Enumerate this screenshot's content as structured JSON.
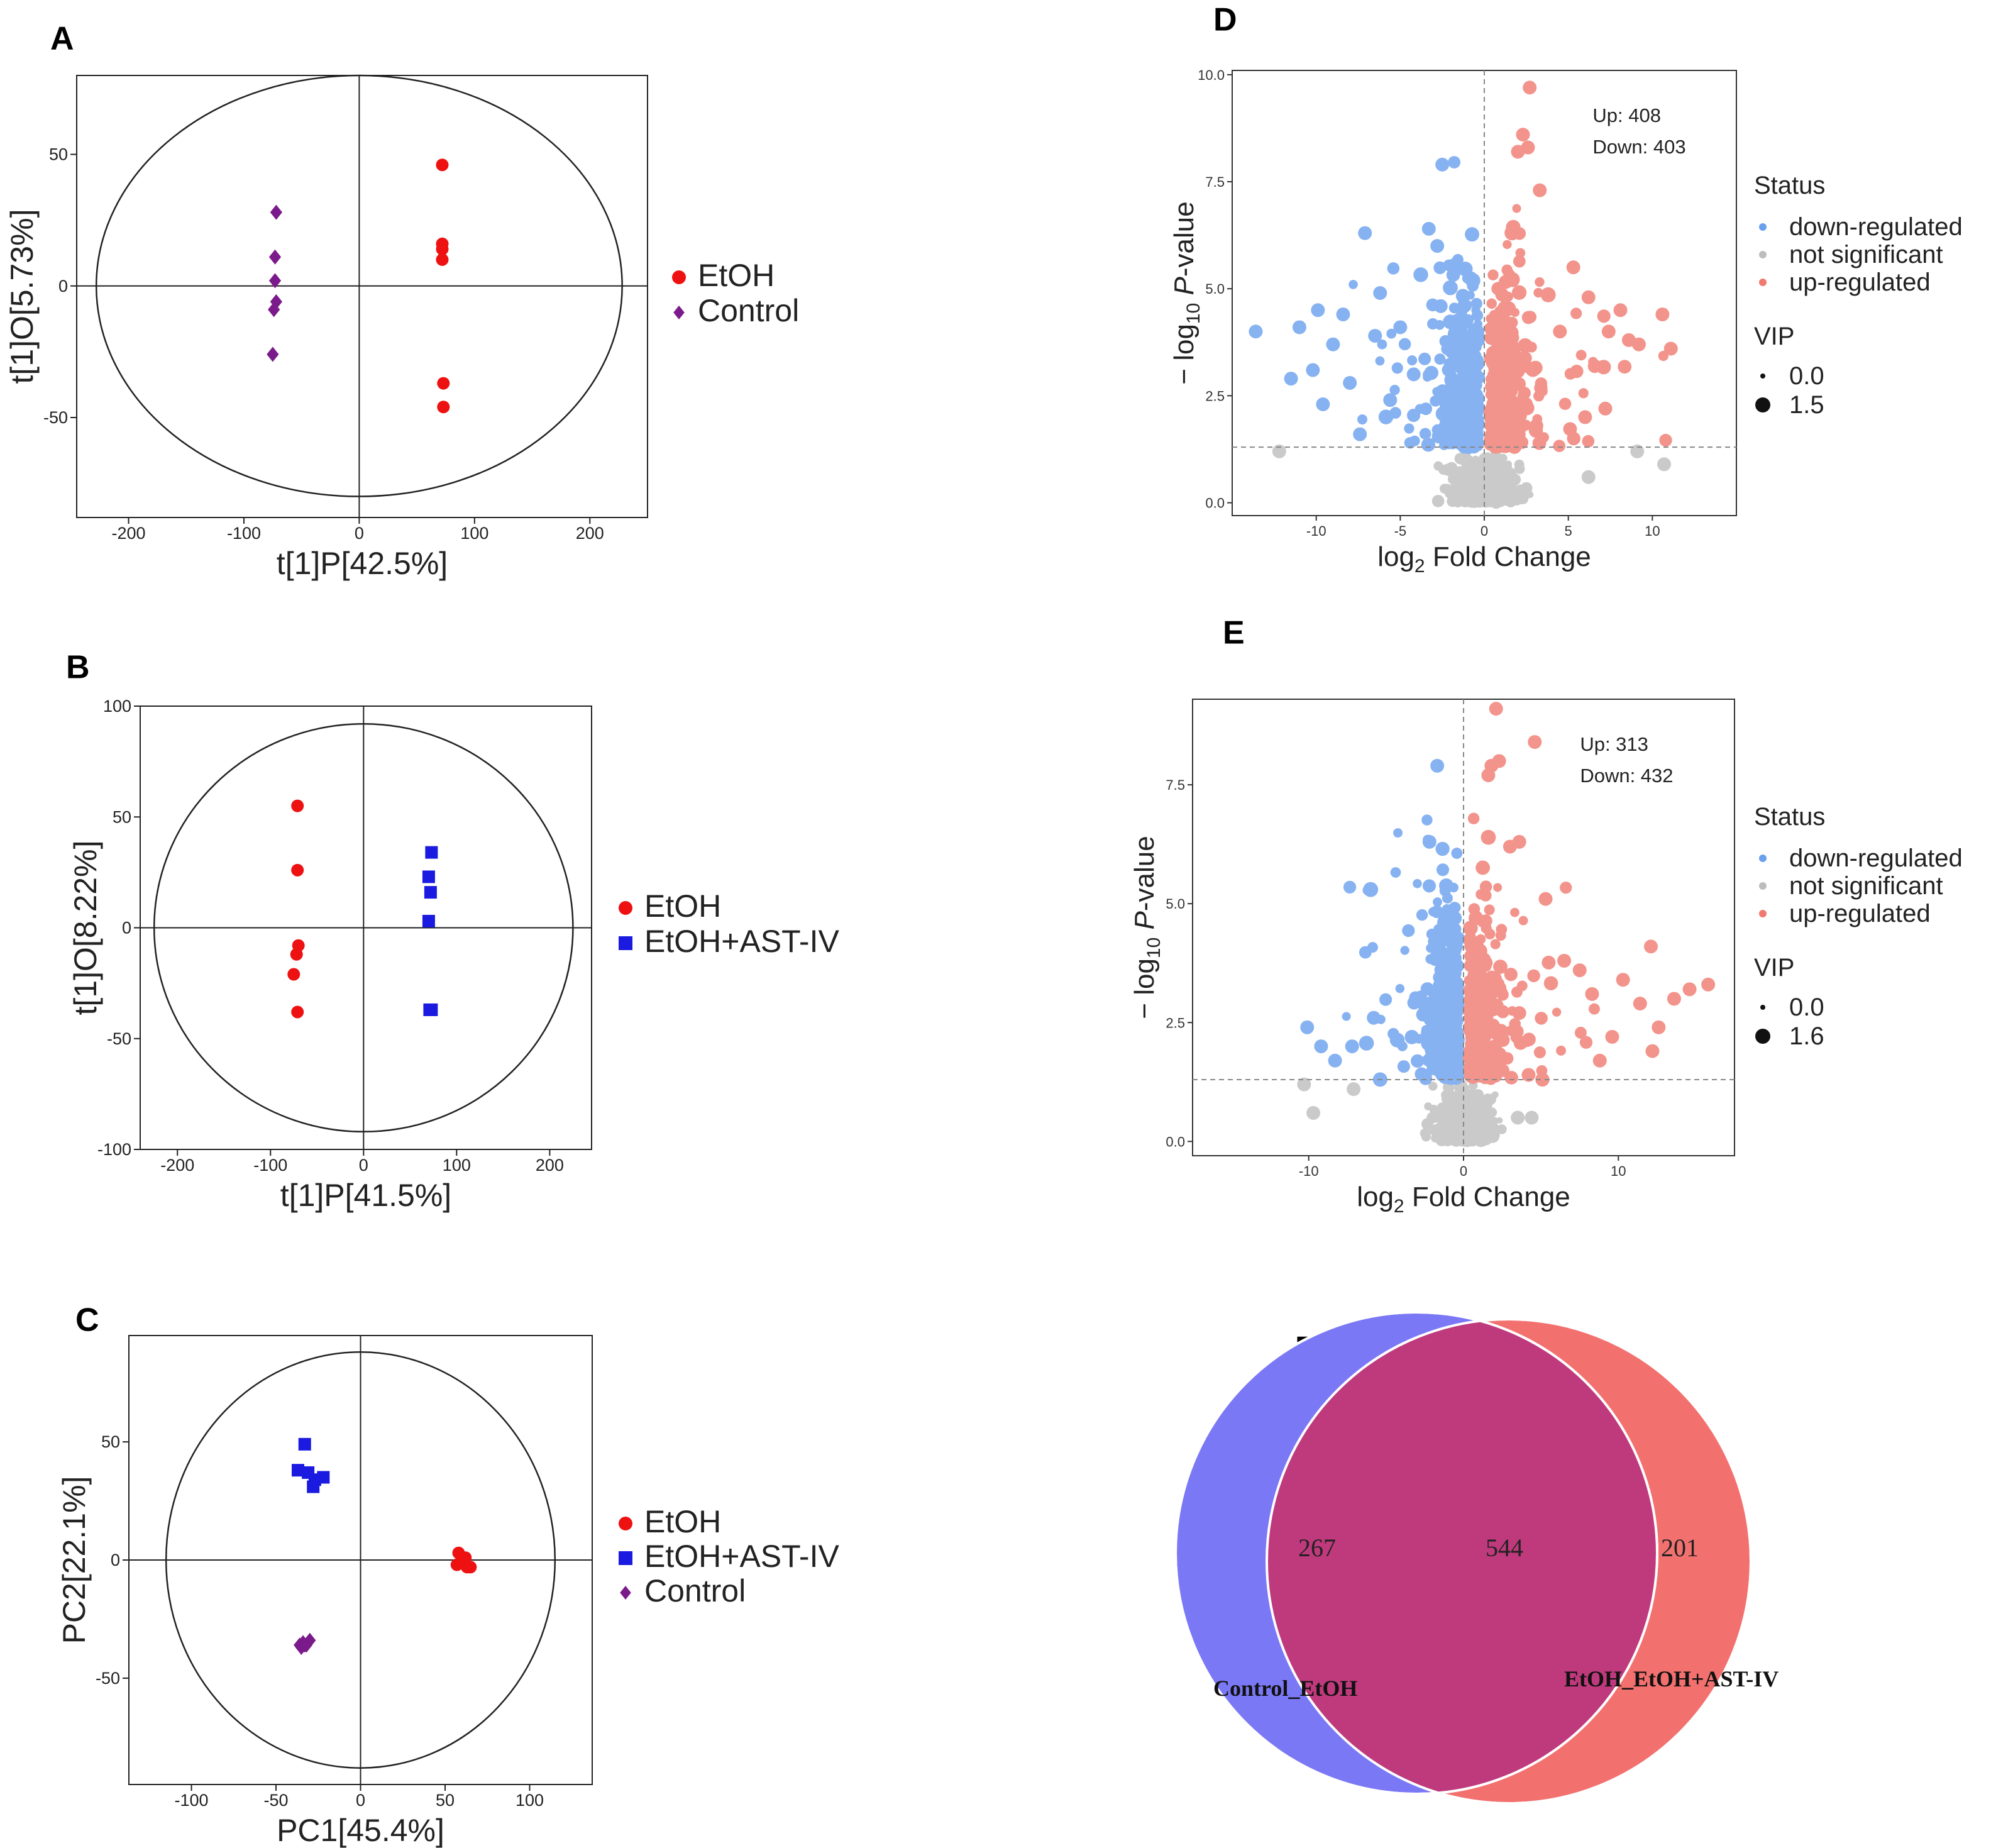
{
  "colors": {
    "etoh": "#ee1111",
    "control": "#7b1a8a",
    "ast": "#1a1ae0",
    "down": "#6aa0ee",
    "ns": "#bdbdbd",
    "up": "#f07a70",
    "venn_left": "#7b78f5",
    "venn_right": "#f2716f",
    "venn_overlap": "#bf3a7c"
  },
  "chart_data": [
    {
      "id": "A",
      "type": "scatter",
      "subtype": "opls-da score plot",
      "panel_label": "A",
      "xlabel": "t[1]P[42.5%]",
      "ylabel": "t[1]O[5.73%]",
      "xlim": [
        -245,
        250
      ],
      "ylim": [
        -88,
        80
      ],
      "xticks": [
        -200,
        -100,
        0,
        100,
        200
      ],
      "yticks": [
        -50,
        0,
        50
      ],
      "ellipse": {
        "rx": 228,
        "ry": 80
      },
      "legend": "right",
      "series": [
        {
          "name": "EtOH",
          "marker": "circle",
          "color": "#ee1111",
          "points": [
            [
              72,
              46
            ],
            [
              72,
              16
            ],
            [
              72,
              14
            ],
            [
              72,
              10
            ],
            [
              73,
              -37
            ],
            [
              73,
              -46
            ]
          ]
        },
        {
          "name": "Control",
          "marker": "diamond",
          "color": "#7b1a8a",
          "points": [
            [
              -72,
              28
            ],
            [
              -73,
              11
            ],
            [
              -73,
              2
            ],
            [
              -72,
              -6
            ],
            [
              -74,
              -9
            ],
            [
              -75,
              -26
            ]
          ]
        }
      ]
    },
    {
      "id": "B",
      "type": "scatter",
      "subtype": "opls-da score plot",
      "panel_label": "B",
      "xlabel": "t[1]P[41.5%]",
      "ylabel": "t[1]O[8.22%]",
      "xlim": [
        -240,
        245
      ],
      "ylim": [
        -100,
        100
      ],
      "xticks": [
        -200,
        -100,
        0,
        100,
        200
      ],
      "yticks": [
        -100,
        -50,
        0,
        50,
        100
      ],
      "ellipse": {
        "rx": 225,
        "ry": 92
      },
      "legend": "right",
      "series": [
        {
          "name": "EtOH",
          "marker": "circle",
          "color": "#ee1111",
          "points": [
            [
              -71,
              55
            ],
            [
              -71,
              26
            ],
            [
              -70,
              -8
            ],
            [
              -72,
              -12
            ],
            [
              -75,
              -21
            ],
            [
              -71,
              -38
            ]
          ]
        },
        {
          "name": "EtOH+AST-IV",
          "marker": "square",
          "color": "#1a1ae0",
          "points": [
            [
              73,
              34
            ],
            [
              70,
              23
            ],
            [
              72,
              16
            ],
            [
              70,
              3
            ],
            [
              73,
              -37
            ],
            [
              71,
              -37
            ]
          ]
        }
      ]
    },
    {
      "id": "C",
      "type": "scatter",
      "subtype": "pca score plot",
      "panel_label": "C",
      "xlabel": "PC1[45.4%]",
      "ylabel": "PC2[22.1%]",
      "xlim": [
        -137,
        137
      ],
      "ylim": [
        -95,
        95
      ],
      "xticks": [
        -100,
        -50,
        0,
        50,
        100
      ],
      "yticks": [
        -50,
        0,
        50
      ],
      "ellipse": {
        "rx": 115,
        "ry": 88
      },
      "legend": "right",
      "series": [
        {
          "name": "EtOH",
          "marker": "circle",
          "color": "#ee1111",
          "points": [
            [
              58,
              3
            ],
            [
              60,
              -1
            ],
            [
              63,
              -3
            ],
            [
              57,
              -2
            ],
            [
              62,
              1
            ],
            [
              65,
              -3
            ]
          ]
        },
        {
          "name": "EtOH+AST-IV",
          "marker": "square",
          "color": "#1a1ae0",
          "points": [
            [
              -33,
              49
            ],
            [
              -37,
              38
            ],
            [
              -31,
              37
            ],
            [
              -27,
              34
            ],
            [
              -22,
              35
            ],
            [
              -28,
              31
            ]
          ]
        },
        {
          "name": "Control",
          "marker": "diamond",
          "color": "#7b1a8a",
          "points": [
            [
              -36,
              -36
            ],
            [
              -34,
              -35
            ],
            [
              -32,
              -36
            ],
            [
              -30,
              -34
            ],
            [
              -35,
              -37
            ],
            [
              -33,
              -36
            ]
          ]
        }
      ]
    },
    {
      "id": "D",
      "type": "scatter",
      "subtype": "volcano",
      "panel_label": "D",
      "xlabel_main": "log",
      "xlabel_sub": "2",
      "xlabel_rest": " Fold Change",
      "ylabel_main": "− log",
      "ylabel_sub": "10",
      "ylabel_p": " P",
      "ylabel_rest": "-value",
      "xlim": [
        -15,
        15
      ],
      "ylim": [
        -0.3,
        10.1
      ],
      "xticks": [
        -10,
        -5,
        0,
        5,
        10
      ],
      "yticks": [
        0.0,
        2.5,
        5.0,
        7.5,
        10.0
      ],
      "ytick_labels": [
        "0.0",
        "2.5",
        "5.0",
        "7.5",
        "10.0"
      ],
      "threshold_p": 1.3,
      "up_label": "Up: 408",
      "down_label": "Down: 403",
      "up_count": 408,
      "down_count": 403,
      "legend_title_status": "Status",
      "legend_status": [
        "down-regulated",
        "not significant",
        "up-regulated"
      ],
      "legend_title_vip": "VIP",
      "legend_vip": [
        "0.0",
        "1.5"
      ],
      "highlight_points": [
        [
          -13.6,
          4.0
        ],
        [
          -12.2,
          1.2
        ],
        [
          -11.5,
          2.9
        ],
        [
          -11.0,
          4.1
        ],
        [
          -10.2,
          3.1
        ],
        [
          -9.9,
          4.5
        ],
        [
          -9.6,
          2.3
        ],
        [
          -9.0,
          3.7
        ],
        [
          -8.4,
          4.4
        ],
        [
          -8.0,
          2.8
        ],
        [
          -7.4,
          1.6
        ],
        [
          -7.1,
          6.3
        ],
        [
          -6.5,
          3.9
        ],
        [
          -6.2,
          4.9
        ],
        [
          -5.6,
          2.4
        ],
        [
          -5.0,
          4.1
        ],
        [
          -4.2,
          3.0
        ],
        [
          -3.3,
          6.4
        ],
        [
          -2.8,
          6.0
        ],
        [
          -2.5,
          7.9
        ],
        [
          2.0,
          8.2
        ],
        [
          2.6,
          8.3
        ],
        [
          2.3,
          8.6
        ],
        [
          2.7,
          9.7
        ],
        [
          3.3,
          7.3
        ],
        [
          4.5,
          4.0
        ],
        [
          5.3,
          5.5
        ],
        [
          6.2,
          4.8
        ],
        [
          7.4,
          4.0
        ],
        [
          8.1,
          4.5
        ],
        [
          8.6,
          3.8
        ],
        [
          9.2,
          3.7
        ],
        [
          10.6,
          4.4
        ],
        [
          11.1,
          3.6
        ],
        [
          6.0,
          2.0
        ],
        [
          7.2,
          2.2
        ],
        [
          3.1,
          1.8
        ],
        [
          10.7,
          0.9
        ],
        [
          9.1,
          1.2
        ],
        [
          6.2,
          0.6
        ]
      ]
    },
    {
      "id": "E",
      "type": "scatter",
      "subtype": "volcano",
      "panel_label": "E",
      "xlabel_main": "log",
      "xlabel_sub": "2",
      "xlabel_rest": " Fold Change",
      "ylabel_main": "− log",
      "ylabel_sub": "10",
      "ylabel_p": " P",
      "ylabel_rest": "-value",
      "xlim": [
        -17.5,
        17.5
      ],
      "ylim": [
        -0.3,
        9.3
      ],
      "xticks": [
        -10,
        0,
        10
      ],
      "yticks": [
        0.0,
        2.5,
        5.0,
        7.5
      ],
      "ytick_labels": [
        "0.0",
        "2.5",
        "5.0",
        "7.5"
      ],
      "threshold_p": 1.3,
      "up_label": "Up: 313",
      "down_label": "Down: 432",
      "up_count": 313,
      "down_count": 432,
      "legend_title_status": "Status",
      "legend_status": [
        "down-regulated",
        "not significant",
        "up-regulated"
      ],
      "legend_title_vip": "VIP",
      "legend_vip": [
        "0.0",
        "1.6"
      ],
      "highlight_points": [
        [
          -10.1,
          2.4
        ],
        [
          -9.2,
          2.0
        ],
        [
          -8.3,
          1.7
        ],
        [
          -7.2,
          2.0
        ],
        [
          -5.8,
          2.6
        ],
        [
          -10.3,
          1.2
        ],
        [
          -9.7,
          0.6
        ],
        [
          -7.1,
          1.1
        ],
        [
          -1.7,
          7.9
        ],
        [
          -2.2,
          6.3
        ],
        [
          1.6,
          7.7
        ],
        [
          1.8,
          7.9
        ],
        [
          2.3,
          8.0
        ],
        [
          2.1,
          9.1
        ],
        [
          3.0,
          6.2
        ],
        [
          3.6,
          6.3
        ],
        [
          4.6,
          8.4
        ],
        [
          5.3,
          5.1
        ],
        [
          6.5,
          3.8
        ],
        [
          7.5,
          3.6
        ],
        [
          8.3,
          3.1
        ],
        [
          9.6,
          2.2
        ],
        [
          10.3,
          3.4
        ],
        [
          12.1,
          4.1
        ],
        [
          12.6,
          2.4
        ],
        [
          13.6,
          3.0
        ],
        [
          14.6,
          3.2
        ],
        [
          15.8,
          3.3
        ],
        [
          11.4,
          2.9
        ],
        [
          12.2,
          1.9
        ],
        [
          3.6,
          2.7
        ],
        [
          4.2,
          1.4
        ],
        [
          8.8,
          1.7
        ],
        [
          3.5,
          0.5
        ],
        [
          4.4,
          0.5
        ]
      ]
    },
    {
      "id": "F",
      "type": "venn",
      "panel_label": "F",
      "sets": [
        {
          "name": "Control_EtOH",
          "only": 267
        },
        {
          "name": "EtOH_EtOH+AST-IV",
          "only": 201
        }
      ],
      "overlap": 544,
      "left_label": "Control_EtOH",
      "right_label": "EtOH_EtOH+AST-IV",
      "left_value": "267",
      "overlap_value": "544",
      "right_value": "201"
    }
  ]
}
